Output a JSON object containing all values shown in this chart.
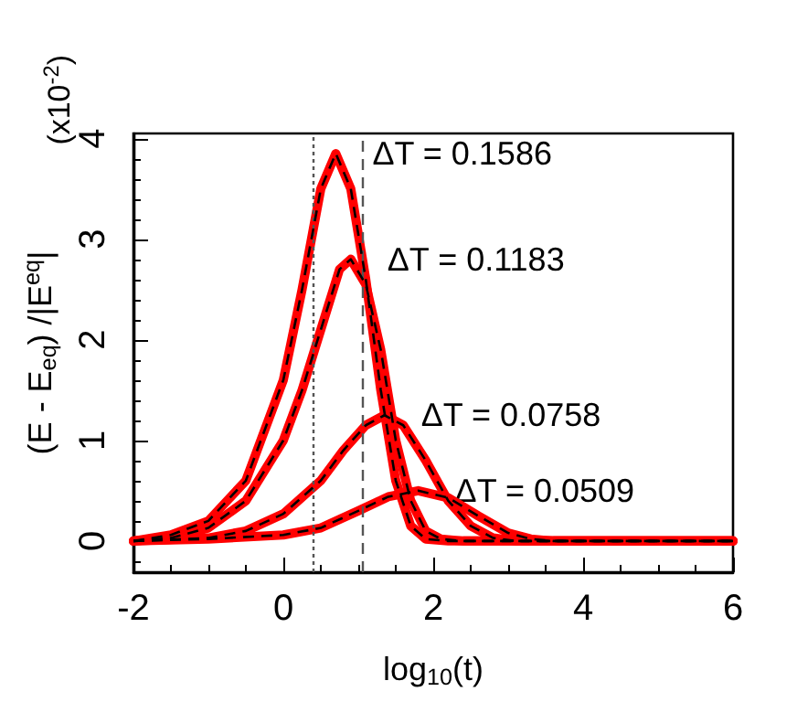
{
  "chart_data": {
    "type": "line",
    "xlabel": "log$_{10}$(t)",
    "ylabel": "(E - E$_{eq}$) /|E$^{eq}$|",
    "xlim": [
      -2,
      6
    ],
    "xticks": [
      -2,
      0,
      2,
      4,
      6
    ],
    "ylim": [
      -0.31,
      4.05
    ],
    "yticks": [
      0,
      1,
      2,
      3,
      4
    ],
    "grid": false,
    "series": [
      {
        "color": "#ff0000",
        "x": [
          -2,
          -1.5,
          -1,
          -0.5,
          0,
          0.25,
          0.5,
          0.7,
          0.9,
          1.1,
          1.3,
          1.5,
          1.7,
          1.9,
          2.2,
          6
        ],
        "values": [
          0,
          0.06,
          0.2,
          0.6,
          1.6,
          2.5,
          3.5,
          3.85,
          3.5,
          2.6,
          1.5,
          0.6,
          0.15,
          0.02,
          0,
          0
        ]
      },
      {
        "color": "#ff0000",
        "x": [
          -2,
          -1.5,
          -1,
          -0.5,
          0,
          0.25,
          0.5,
          0.75,
          0.9,
          1.1,
          1.3,
          1.5,
          1.7,
          1.9,
          2.1,
          2.4,
          6
        ],
        "values": [
          0,
          0.03,
          0.13,
          0.4,
          1.0,
          1.5,
          2.1,
          2.7,
          2.8,
          2.55,
          1.9,
          1.0,
          0.4,
          0.1,
          0.02,
          0,
          0
        ]
      },
      {
        "color": "#ff0000",
        "x": [
          -2,
          -1,
          -0.5,
          0,
          0.5,
          0.8,
          1.1,
          1.35,
          1.6,
          1.9,
          2.2,
          2.5,
          2.8,
          3.1,
          6
        ],
        "values": [
          0,
          0.03,
          0.1,
          0.27,
          0.6,
          0.9,
          1.15,
          1.25,
          1.15,
          0.8,
          0.4,
          0.15,
          0.03,
          0,
          0
        ]
      },
      {
        "color": "#ff0000",
        "x": [
          -2,
          -1,
          0,
          0.5,
          1,
          1.4,
          1.8,
          2.2,
          2.6,
          3,
          3.3,
          3.6,
          6
        ],
        "values": [
          0,
          0.02,
          0.06,
          0.13,
          0.3,
          0.44,
          0.5,
          0.43,
          0.25,
          0.08,
          0.02,
          0,
          0
        ]
      }
    ],
    "ref_lines": [
      {
        "axis": "x",
        "value": 0.39,
        "color": "#555555",
        "line_style": "dotted"
      },
      {
        "axis": "x",
        "value": 1.05,
        "color": "#555555",
        "line_style": "dashed"
      }
    ],
    "annotations": [
      "ΔT = 0.1586",
      "ΔT = 0.1183",
      "ΔT = 0.0758",
      "ΔT = 0.0509",
      "(x10$^{-2}$)"
    ]
  }
}
